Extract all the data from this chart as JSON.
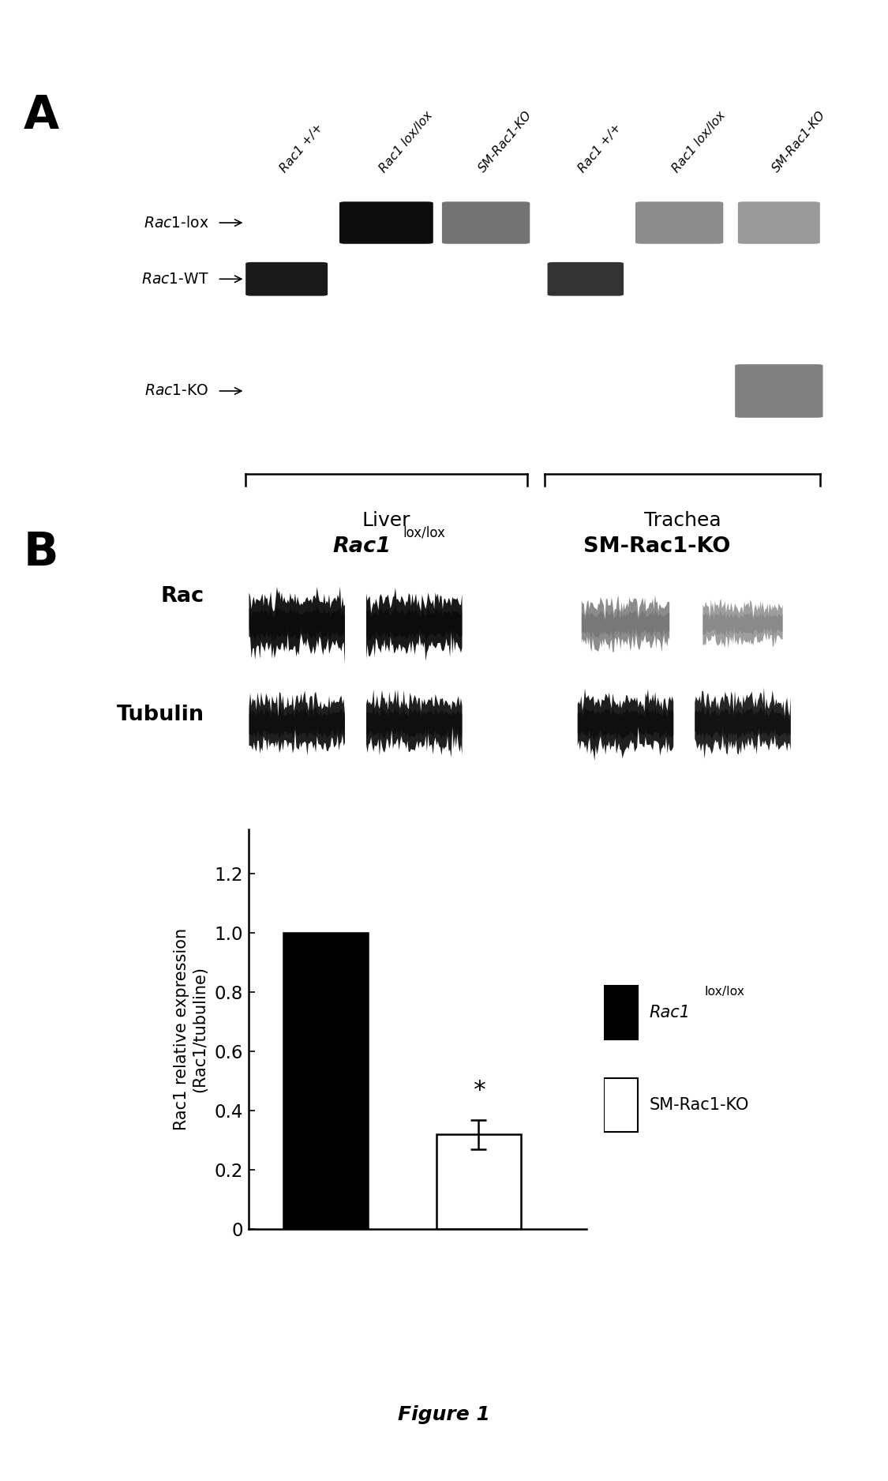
{
  "panel_a": {
    "label": "A",
    "gel_lanes": [
      "Rac1 +/+",
      "Rac1 lox/lox",
      "SM-Rac1-KO",
      "Rac1 +/+",
      "Rac1 lox/lox",
      "SM-Rac1-KO"
    ],
    "row_labels_italic": [
      "Rac1-lox",
      "Rac1-WT",
      "Rac1-KO"
    ],
    "group_labels": [
      "Liver",
      "Trachea"
    ],
    "gel1_bands": {
      "lox_row": {
        "lane1_bright": 1.0,
        "lane2_dim": 0.6
      },
      "wt_row": {
        "lane0_bright": 0.85
      },
      "ko_row": {}
    },
    "gel2_bands": {
      "lox_row": {
        "lane4_dim": 0.45,
        "lane5_dimmer": 0.38
      },
      "wt_row": {
        "lane3_bright": 0.75
      },
      "ko_row": {
        "lane5_dim": 0.35
      }
    }
  },
  "panel_b": {
    "label": "B",
    "bar_values": [
      1.0,
      0.32
    ],
    "bar_errors": [
      0.0,
      0.05
    ],
    "bar_colors": [
      "#000000",
      "#ffffff"
    ],
    "bar_labels": [
      "Rac1 lox/lox",
      "SM-Rac1-KO"
    ],
    "ylabel": "Rac1 relative expression\n(Rac1/tubuline)",
    "yticks": [
      0,
      0.2,
      0.4,
      0.6,
      0.8,
      1.0,
      1.2
    ],
    "ylim": [
      0,
      1.35
    ],
    "significance_label": "*"
  },
  "figure_label": "Figure 1",
  "bg_color": "#ffffff"
}
